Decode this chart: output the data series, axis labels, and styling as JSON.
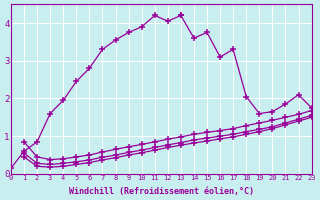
{
  "xlabel": "Windchill (Refroidissement éolien,°C)",
  "background_color": "#c8eef0",
  "line_color": "#990099",
  "xlim": [
    0,
    23
  ],
  "ylim": [
    0,
    4.5
  ],
  "xticks": [
    0,
    1,
    2,
    3,
    4,
    5,
    6,
    7,
    8,
    9,
    10,
    11,
    12,
    13,
    14,
    15,
    16,
    17,
    18,
    19,
    20,
    21,
    22,
    23
  ],
  "yticks": [
    0,
    1,
    2,
    3,
    4
  ],
  "grid_color": "#ffffff",
  "series": [
    {
      "x": [
        0,
        1,
        2,
        3,
        4,
        5,
        6,
        7,
        8,
        9,
        10,
        11,
        12,
        13
      ],
      "y": [
        0.15,
        0.6,
        0.85,
        1.6,
        1.95,
        2.45,
        2.8,
        3.3,
        3.55,
        3.75,
        3.9,
        4.2,
        4.05,
        4.2
      ]
    },
    {
      "x": [
        13,
        14,
        15,
        16,
        17,
        18,
        19,
        20,
        21,
        22,
        23
      ],
      "y": [
        4.2,
        3.6,
        3.75,
        3.1,
        3.3,
        2.05,
        1.6,
        1.65,
        1.85,
        2.1,
        1.75
      ]
    },
    {
      "x": [
        1,
        2,
        3,
        4,
        5,
        6,
        7,
        8,
        9,
        10,
        11,
        12,
        13,
        14,
        15,
        16,
        17,
        18,
        19,
        20,
        21,
        22,
        23
      ],
      "y": [
        0.85,
        0.45,
        0.38,
        0.4,
        0.45,
        0.5,
        0.58,
        0.65,
        0.72,
        0.78,
        0.85,
        0.92,
        0.98,
        1.05,
        1.1,
        1.15,
        1.2,
        1.28,
        1.35,
        1.42,
        1.5,
        1.58,
        1.68
      ]
    },
    {
      "x": [
        1,
        2,
        3,
        4,
        5,
        6,
        7,
        8,
        9,
        10,
        11,
        12,
        13,
        14,
        15,
        16,
        17,
        18,
        19,
        20,
        21,
        22,
        23
      ],
      "y": [
        0.55,
        0.28,
        0.25,
        0.28,
        0.32,
        0.37,
        0.44,
        0.5,
        0.57,
        0.63,
        0.7,
        0.77,
        0.83,
        0.9,
        0.95,
        1.0,
        1.05,
        1.12,
        1.18,
        1.25,
        1.35,
        1.45,
        1.55
      ]
    },
    {
      "x": [
        1,
        2,
        3,
        4,
        5,
        6,
        7,
        8,
        9,
        10,
        11,
        12,
        13,
        14,
        15,
        16,
        17,
        18,
        19,
        20,
        21,
        22,
        23
      ],
      "y": [
        0.45,
        0.2,
        0.18,
        0.2,
        0.25,
        0.3,
        0.37,
        0.43,
        0.5,
        0.56,
        0.63,
        0.7,
        0.76,
        0.82,
        0.87,
        0.93,
        0.98,
        1.05,
        1.12,
        1.2,
        1.3,
        1.4,
        1.5
      ]
    }
  ]
}
